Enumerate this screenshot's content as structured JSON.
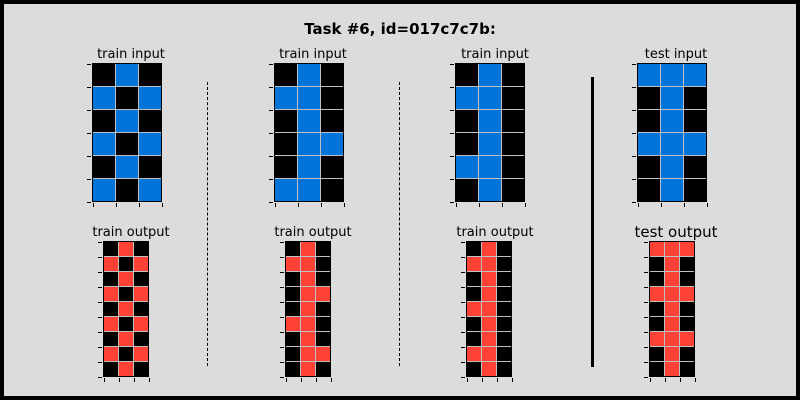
{
  "title": "Task #6, id=017c7c7b:",
  "colors": {
    "background": "#dcdcdc",
    "black": "#000000",
    "blue": "#0074d9",
    "red": "#ff4136",
    "grid_line": "#c0c0c0"
  },
  "pairs": [
    {
      "input_label": "train input",
      "output_label": "train output",
      "input": [
        [
          0,
          1,
          0
        ],
        [
          1,
          0,
          1
        ],
        [
          0,
          1,
          0
        ],
        [
          1,
          0,
          1
        ],
        [
          0,
          1,
          0
        ],
        [
          1,
          0,
          1
        ]
      ],
      "output": [
        [
          0,
          2,
          0
        ],
        [
          2,
          0,
          2
        ],
        [
          0,
          2,
          0
        ],
        [
          2,
          0,
          2
        ],
        [
          0,
          2,
          0
        ],
        [
          2,
          0,
          2
        ],
        [
          0,
          2,
          0
        ],
        [
          2,
          0,
          2
        ],
        [
          0,
          2,
          0
        ]
      ]
    },
    {
      "input_label": "train input",
      "output_label": "train output",
      "input": [
        [
          0,
          1,
          0
        ],
        [
          1,
          1,
          0
        ],
        [
          0,
          1,
          0
        ],
        [
          0,
          1,
          1
        ],
        [
          0,
          1,
          0
        ],
        [
          1,
          1,
          0
        ]
      ],
      "output": [
        [
          0,
          2,
          0
        ],
        [
          2,
          2,
          0
        ],
        [
          0,
          2,
          0
        ],
        [
          0,
          2,
          2
        ],
        [
          0,
          2,
          0
        ],
        [
          2,
          2,
          0
        ],
        [
          0,
          2,
          0
        ],
        [
          0,
          2,
          2
        ],
        [
          0,
          2,
          0
        ]
      ]
    },
    {
      "input_label": "train input",
      "output_label": "train output",
      "input": [
        [
          0,
          1,
          0
        ],
        [
          1,
          1,
          0
        ],
        [
          0,
          1,
          0
        ],
        [
          0,
          1,
          0
        ],
        [
          1,
          1,
          0
        ],
        [
          0,
          1,
          0
        ]
      ],
      "output": [
        [
          0,
          2,
          0
        ],
        [
          2,
          2,
          0
        ],
        [
          0,
          2,
          0
        ],
        [
          0,
          2,
          0
        ],
        [
          2,
          2,
          0
        ],
        [
          0,
          2,
          0
        ],
        [
          0,
          2,
          0
        ],
        [
          2,
          2,
          0
        ],
        [
          0,
          2,
          0
        ]
      ]
    },
    {
      "input_label": "test input",
      "output_label": "test output",
      "input": [
        [
          1,
          1,
          1
        ],
        [
          0,
          1,
          0
        ],
        [
          0,
          1,
          0
        ],
        [
          1,
          1,
          1
        ],
        [
          0,
          1,
          0
        ],
        [
          0,
          1,
          0
        ]
      ],
      "output": [
        [
          2,
          2,
          2
        ],
        [
          0,
          2,
          0
        ],
        [
          0,
          2,
          0
        ],
        [
          2,
          2,
          2
        ],
        [
          0,
          2,
          0
        ],
        [
          0,
          2,
          0
        ],
        [
          2,
          2,
          2
        ],
        [
          0,
          2,
          0
        ],
        [
          0,
          2,
          0
        ]
      ]
    }
  ]
}
